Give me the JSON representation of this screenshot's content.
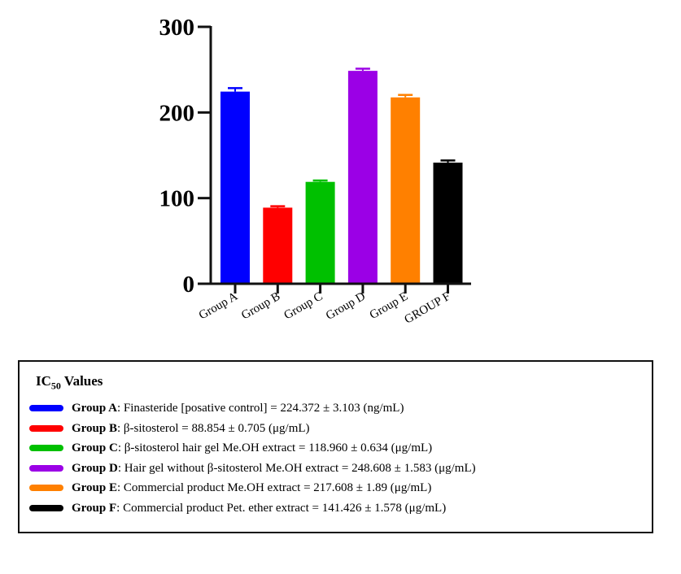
{
  "chart_data": {
    "type": "bar",
    "categories": [
      "Group A",
      "Group B",
      "Group C",
      "Group D",
      "Group E",
      "GROUP F"
    ],
    "values": [
      224.372,
      88.854,
      118.96,
      248.608,
      217.608,
      141.426
    ],
    "errors": [
      3.103,
      0.705,
      0.634,
      1.583,
      1.89,
      1.578
    ],
    "colors": [
      "#0000ff",
      "#ff0000",
      "#00c000",
      "#9b00e6",
      "#ff8000",
      "#000000"
    ],
    "ylim": [
      0,
      300
    ],
    "yticks": [
      "0",
      "100",
      "200",
      "300"
    ],
    "grid": false
  },
  "legend": {
    "title_main": "IC",
    "title_sub": "50",
    "title_rest": " Values",
    "items": [
      {
        "label": "Group A",
        "desc": ": Finasteride [posative control] = 224.372  ± 3.103 (ng/mL)",
        "color": "#0000ff"
      },
      {
        "label": "Group B",
        "desc": ": β-sitosterol = 88.854 ± 0.705 (μg/mL)",
        "color": "#ff0000"
      },
      {
        "label": "Group C",
        "desc": ": β-sitosterol hair gel Me.OH extract = 118.960 ± 0.634 (μg/mL)",
        "color": "#00c000"
      },
      {
        "label": "Group D",
        "desc": ": Hair gel without β-sitosterol Me.OH extract = 248.608  ± 1.583 (μg/mL)",
        "color": "#9b00e6"
      },
      {
        "label": "Group E",
        "desc": ": Commercial product Me.OH extract = 217.608  ± 1.89 (μg/mL)",
        "color": "#ff8000"
      },
      {
        "label": "Group F",
        "desc": ": Commercial product Pet. ether extract = 141.426 ± 1.578 (μg/mL)",
        "color": "#000000"
      }
    ]
  }
}
